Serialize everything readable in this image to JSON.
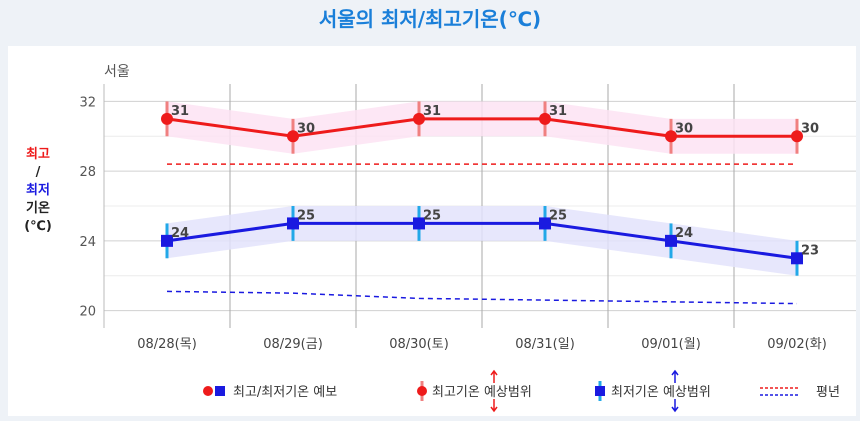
{
  "page_title": "서울의 최저/최고기온(℃)",
  "colors": {
    "title": "#1a7fd9",
    "max_series": "#ee1b1b",
    "min_series": "#1a1ae0",
    "max_range_bar": "#f08080",
    "min_range_bar": "#22a8e8",
    "max_band": "#fde3f3",
    "min_band": "#e3e3fb"
  },
  "ylabel": {
    "max": "최고",
    "sep": "/",
    "min": "최저",
    "temp": "기온",
    "unit": "(℃)"
  },
  "chart_data": {
    "type": "line",
    "title": "서울",
    "categories": [
      "08/28(목)",
      "08/29(금)",
      "08/30(토)",
      "08/31(일)",
      "09/01(월)",
      "09/02(화)"
    ],
    "ylim": [
      19,
      33
    ],
    "yticks": [
      20,
      24,
      28,
      32
    ],
    "grid": true,
    "series": [
      {
        "name": "최고기온",
        "values": [
          31,
          30,
          31,
          31,
          30,
          30
        ],
        "range_low": [
          30,
          29,
          30,
          30,
          29,
          29
        ],
        "range_high": [
          32,
          31,
          32,
          32,
          31,
          31
        ]
      },
      {
        "name": "최저기온",
        "values": [
          24,
          25,
          25,
          25,
          24,
          23
        ],
        "range_low": [
          23,
          24,
          24,
          24,
          23,
          22
        ],
        "range_high": [
          25,
          26,
          26,
          26,
          25,
          24
        ]
      },
      {
        "name": "평년 최고",
        "values": [
          28.4,
          28.4,
          28.4,
          28.4,
          28.4,
          28.4
        ],
        "style": "dashed"
      },
      {
        "name": "평년 최저",
        "values": [
          21.1,
          21.0,
          20.7,
          20.6,
          20.5,
          20.4
        ],
        "style": "dashed"
      }
    ],
    "legend": {
      "position": "bottom",
      "items": [
        "최고/최저기온 예보",
        "최고기온 예상범위",
        "최저기온 예상범위",
        "평년"
      ]
    }
  }
}
